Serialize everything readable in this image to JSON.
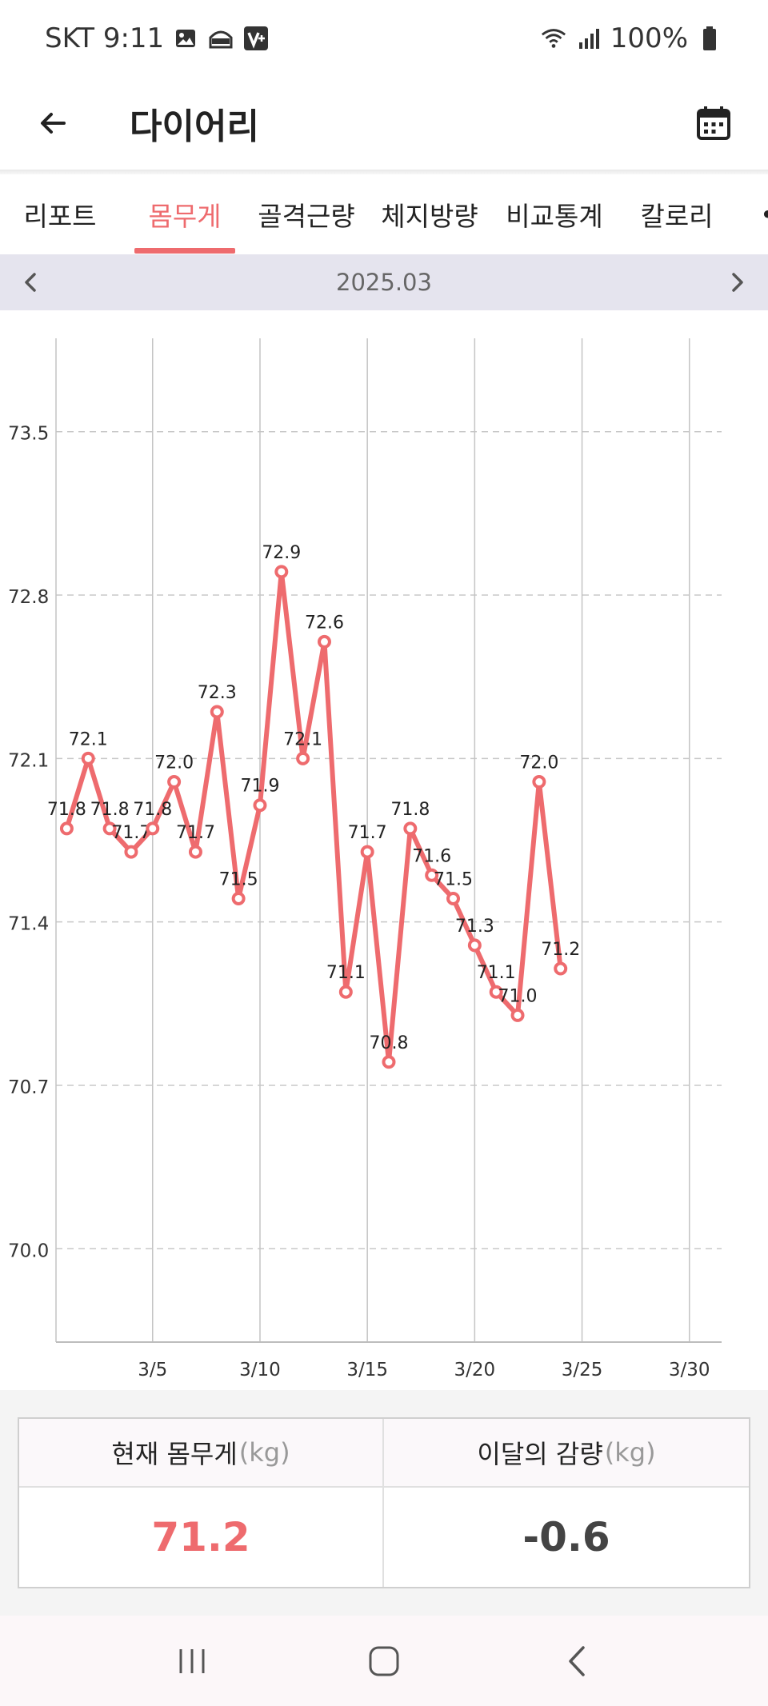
{
  "status_bar": {
    "carrier_time": "SKT 9:11",
    "battery": "100%",
    "icons": [
      "image-icon",
      "app-badge-icon",
      "v-app-icon",
      "wifi-icon",
      "signal-icon",
      "battery-icon"
    ]
  },
  "app_bar": {
    "title": "다이어리",
    "back_icon": "arrow-left-icon",
    "calendar_icon": "calendar-icon"
  },
  "tabs": [
    {
      "label": "리포트",
      "active": false
    },
    {
      "label": "몸무게",
      "active": true
    },
    {
      "label": "골격근량",
      "active": false
    },
    {
      "label": "체지방량",
      "active": false
    },
    {
      "label": "비교통계",
      "active": false
    },
    {
      "label": "칼로리",
      "active": false
    }
  ],
  "month_nav": {
    "label": "2025.03"
  },
  "chart_data": {
    "type": "line",
    "x": [
      "3/1",
      "3/2",
      "3/3",
      "3/4",
      "3/5",
      "3/6",
      "3/7",
      "3/8",
      "3/9",
      "3/10",
      "3/11",
      "3/12",
      "3/13",
      "3/14",
      "3/15",
      "3/16",
      "3/17",
      "3/18",
      "3/19",
      "3/20",
      "3/21",
      "3/22",
      "3/23",
      "3/24"
    ],
    "series": [
      {
        "values": [
          71.8,
          72.1,
          71.8,
          71.7,
          71.8,
          72.0,
          71.7,
          72.3,
          71.5,
          71.9,
          72.9,
          72.1,
          72.6,
          71.1,
          71.7,
          70.8,
          71.8,
          71.6,
          71.5,
          71.3,
          71.1,
          71.0,
          72.0,
          71.2
        ]
      }
    ],
    "x_ticks": [
      "3/5",
      "3/10",
      "3/15",
      "3/20",
      "3/25",
      "3/30"
    ],
    "y_ticks": [
      "70.0",
      "70.7",
      "71.4",
      "72.1",
      "72.8",
      "73.5"
    ],
    "ylim": [
      69.6,
      73.9
    ],
    "xlim_days": [
      0.5,
      31.5
    ],
    "grid": true,
    "line_color": "#ee6b6e"
  },
  "summary": {
    "current_label": "현재 몸무게",
    "current_unit": "(kg)",
    "current_value": "71.2",
    "change_label": "이달의 감량",
    "change_unit": "(kg)",
    "change_value": "-0.6"
  },
  "colors": {
    "accent": "#ee6b6e",
    "month_bar": "#e5e4ee"
  }
}
